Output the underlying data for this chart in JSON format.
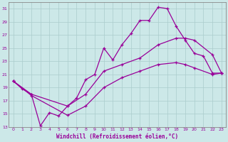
{
  "xlabel": "Windchill (Refroidissement éolien,°C)",
  "bg_color": "#cce8e8",
  "line_color": "#990099",
  "grid_color": "#aacccc",
  "xlim": [
    -0.5,
    23.5
  ],
  "ylim": [
    13,
    32
  ],
  "yticks": [
    13,
    15,
    17,
    19,
    21,
    23,
    25,
    27,
    29,
    31
  ],
  "xticks": [
    0,
    1,
    2,
    3,
    4,
    5,
    6,
    7,
    8,
    9,
    10,
    11,
    12,
    13,
    14,
    15,
    16,
    17,
    18,
    19,
    20,
    21,
    22,
    23
  ],
  "line1_x": [
    0,
    1,
    2,
    3,
    4,
    5,
    6,
    7,
    8,
    9,
    10,
    11,
    12,
    13,
    14,
    15,
    16,
    17,
    18,
    19,
    20,
    21,
    22,
    23
  ],
  "line1_y": [
    20,
    18.8,
    18.0,
    13.2,
    15.2,
    14.7,
    16.2,
    17.4,
    20.2,
    21.0,
    25.0,
    23.2,
    25.5,
    27.2,
    29.2,
    29.2,
    31.2,
    31.0,
    28.3,
    26.2,
    24.2,
    23.8,
    21.2,
    21.2
  ],
  "line2_x": [
    0,
    2,
    6,
    8,
    10,
    12,
    14,
    16,
    18,
    19,
    20,
    22,
    23
  ],
  "line2_y": [
    20,
    18.0,
    16.2,
    18.0,
    21.5,
    22.5,
    23.5,
    25.5,
    26.5,
    26.5,
    26.2,
    24.0,
    21.2
  ],
  "line3_x": [
    0,
    2,
    6,
    8,
    10,
    12,
    14,
    16,
    18,
    19,
    20,
    22,
    23
  ],
  "line3_y": [
    20,
    17.8,
    14.8,
    16.2,
    19.0,
    20.5,
    21.5,
    22.5,
    22.8,
    22.5,
    22.0,
    21.0,
    21.2
  ]
}
